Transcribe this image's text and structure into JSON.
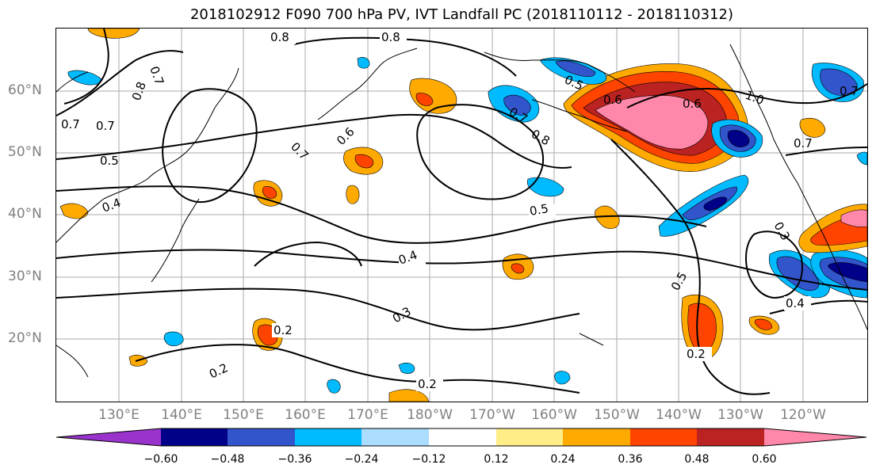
{
  "title": "2018102912 F090 700 hPa PV, IVT Landfall PC (2018110112 - 2018110312)",
  "lat_labels": [
    "60°N",
    "50°N",
    "40°N",
    "30°N",
    "20°N"
  ],
  "lon_labels": [
    "130°E",
    "140°E",
    "150°E",
    "160°E",
    "170°E",
    "180°W",
    "170°W",
    "160°W",
    "150°W",
    "140°W",
    "130°W",
    "120°W"
  ],
  "contour_labels": [
    "0.8",
    "0.8",
    "0.7",
    "0.7",
    "0.8",
    "0.5",
    "0.7",
    "0.4",
    "0.6",
    "0.7",
    "0.5",
    "0.6",
    "0.7",
    "0.8",
    "0.6",
    "1.0",
    "0.7",
    "0.7",
    "0.5",
    "0.4",
    "0.3",
    "0.2",
    "0.2",
    "0.2",
    "0.5",
    "0.3",
    "0.4",
    "0.2"
  ],
  "colorbar": {
    "ticks": [
      "−0.60",
      "−0.48",
      "−0.36",
      "−0.24",
      "−0.12",
      "0.12",
      "0.24",
      "0.36",
      "0.48",
      "0.60"
    ],
    "colors": [
      "#9933cc",
      "#000088",
      "#3355cc",
      "#00bbff",
      "#aaddff",
      "#ffffff",
      "#ffee88",
      "#ffaa00",
      "#ff4400",
      "#bb2222",
      "#ff88aa"
    ]
  }
}
